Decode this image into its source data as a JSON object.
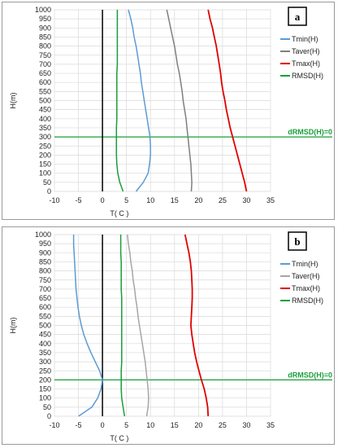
{
  "chart_data": [
    {
      "type": "line",
      "panel_label": "a",
      "xlabel": "T( C )",
      "ylabel": "H(m)",
      "xlim": [
        -10,
        35
      ],
      "ylim": [
        0,
        1000
      ],
      "xticks": [
        -10,
        -5,
        0,
        5,
        10,
        15,
        20,
        25,
        30,
        35
      ],
      "yticks": [
        0,
        50,
        100,
        150,
        200,
        250,
        300,
        350,
        400,
        450,
        500,
        550,
        600,
        650,
        700,
        750,
        800,
        850,
        900,
        950,
        1000
      ],
      "vertical_line_x": 0,
      "horizontal_line": {
        "y": 300,
        "label": "dRMSD(H)=0",
        "color": "#1a9e3a"
      },
      "legend_position": "right",
      "series": [
        {
          "name": "Tmin(H)",
          "color": "#5b9bd5",
          "x": [
            7.0,
            8.5,
            9.5,
            9.8,
            10.0,
            10.0,
            9.9,
            9.6,
            9.3,
            9.0,
            8.7,
            8.4,
            8.1,
            7.9,
            7.6,
            7.3,
            7.0,
            6.6,
            6.3,
            5.9,
            5.4
          ],
          "y": [
            0,
            50,
            100,
            150,
            200,
            250,
            300,
            350,
            400,
            450,
            500,
            550,
            600,
            650,
            700,
            750,
            800,
            850,
            900,
            950,
            1000
          ]
        },
        {
          "name": "Taver(H)",
          "color": "#7f7f7f",
          "x": [
            18.5,
            18.6,
            18.5,
            18.4,
            18.2,
            18.0,
            17.8,
            17.6,
            17.4,
            17.1,
            16.8,
            16.6,
            16.3,
            16.0,
            15.6,
            15.3,
            15.0,
            14.6,
            14.2,
            13.8,
            13.4
          ],
          "y": [
            0,
            50,
            100,
            150,
            200,
            250,
            300,
            350,
            400,
            450,
            500,
            550,
            600,
            650,
            700,
            750,
            800,
            850,
            900,
            950,
            1000
          ]
        },
        {
          "name": "Tmax(H)",
          "color": "#e00000",
          "x": [
            30.0,
            29.6,
            29.1,
            28.6,
            28.1,
            27.6,
            27.1,
            26.6,
            26.2,
            25.8,
            25.5,
            25.1,
            24.8,
            24.6,
            24.3,
            24.0,
            23.7,
            23.3,
            22.9,
            22.4,
            22.0
          ],
          "y": [
            0,
            50,
            100,
            150,
            200,
            250,
            300,
            350,
            400,
            450,
            500,
            550,
            600,
            650,
            700,
            750,
            800,
            850,
            900,
            950,
            1000
          ]
        },
        {
          "name": "RMSD(H)",
          "color": "#1a9e3a",
          "x": [
            4.3,
            3.6,
            3.2,
            3.0,
            2.9,
            2.9,
            2.9,
            2.9,
            3.0,
            3.0,
            3.0,
            3.0,
            3.0,
            3.0,
            3.1,
            3.1,
            3.1,
            3.1,
            3.1,
            3.1,
            3.1
          ],
          "y": [
            0,
            50,
            100,
            150,
            200,
            250,
            300,
            350,
            400,
            450,
            500,
            550,
            600,
            650,
            700,
            750,
            800,
            850,
            900,
            950,
            1000
          ]
        }
      ]
    },
    {
      "type": "line",
      "panel_label": "b",
      "xlabel": "T( C )",
      "ylabel": "H(m)",
      "xlim": [
        -10,
        35
      ],
      "ylim": [
        0,
        1000
      ],
      "xticks": [
        -10,
        -5,
        0,
        5,
        10,
        15,
        20,
        25,
        30,
        35
      ],
      "yticks": [
        0,
        50,
        100,
        150,
        200,
        250,
        300,
        350,
        400,
        450,
        500,
        550,
        600,
        650,
        700,
        750,
        800,
        850,
        900,
        950,
        1000
      ],
      "vertical_line_x": 0,
      "horizontal_line": {
        "y": 200,
        "label": "dRMSD(H)=0",
        "color": "#1a9e3a"
      },
      "legend_position": "right",
      "series": [
        {
          "name": "Tmin(H)",
          "color": "#5b9bd5",
          "x": [
            -5.0,
            -2.2,
            -1.0,
            -0.3,
            0.0,
            -0.6,
            -1.5,
            -2.4,
            -3.2,
            -3.9,
            -4.4,
            -4.8,
            -5.1,
            -5.3,
            -5.5,
            -5.6,
            -5.7,
            -5.8,
            -5.9,
            -6.0,
            -6.0
          ],
          "y": [
            0,
            50,
            100,
            150,
            200,
            250,
            300,
            350,
            400,
            450,
            500,
            550,
            600,
            650,
            700,
            750,
            800,
            850,
            900,
            950,
            1000
          ]
        },
        {
          "name": "Taver(H)",
          "color": "#a6a6a6",
          "x": [
            9.2,
            9.5,
            9.6,
            9.5,
            9.3,
            9.1,
            8.9,
            8.6,
            8.3,
            8.0,
            7.7,
            7.4,
            7.2,
            6.9,
            6.7,
            6.4,
            6.2,
            5.9,
            5.7,
            5.4,
            5.2
          ],
          "y": [
            0,
            50,
            100,
            150,
            200,
            250,
            300,
            350,
            400,
            450,
            500,
            550,
            600,
            650,
            700,
            750,
            800,
            850,
            900,
            950,
            1000
          ]
        },
        {
          "name": "Tmax(H)",
          "color": "#e00000",
          "x": [
            22.0,
            21.9,
            21.6,
            21.2,
            20.6,
            20.1,
            19.6,
            19.2,
            18.9,
            18.6,
            18.4,
            18.5,
            18.6,
            18.7,
            18.7,
            18.6,
            18.5,
            18.3,
            18.0,
            17.6,
            17.2
          ],
          "y": [
            0,
            50,
            100,
            150,
            200,
            250,
            300,
            350,
            400,
            450,
            500,
            550,
            600,
            650,
            700,
            750,
            800,
            850,
            900,
            950,
            1000
          ]
        },
        {
          "name": "RMSD(H)",
          "color": "#1a9e3a",
          "x": [
            4.6,
            4.3,
            4.0,
            3.9,
            3.9,
            3.9,
            4.0,
            4.0,
            4.0,
            4.0,
            4.0,
            4.0,
            4.0,
            4.0,
            3.9,
            3.9,
            3.9,
            3.9,
            3.8,
            3.8,
            3.8
          ],
          "y": [
            0,
            50,
            100,
            150,
            200,
            250,
            300,
            350,
            400,
            450,
            500,
            550,
            600,
            650,
            700,
            750,
            800,
            850,
            900,
            950,
            1000
          ]
        }
      ]
    }
  ]
}
